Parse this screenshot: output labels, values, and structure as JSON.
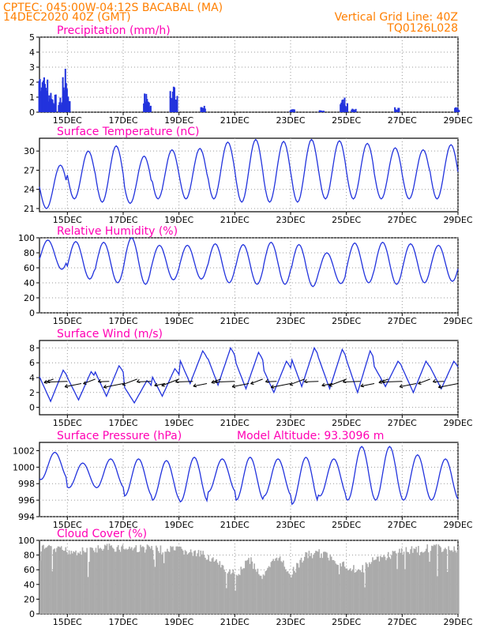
{
  "header": {
    "line1_left": "CPTEC:   045:00W-04:12S   BACABAL (MA)",
    "line2_left": "14DEC2020 40Z (GMT)",
    "line2_right": "Vertical Grid Line: 40Z",
    "line3_right": "TQ0126L028"
  },
  "colors": {
    "header": "#ff7f00",
    "title": "#ff00b4",
    "line": "#2233dd",
    "bar": "#2233dd",
    "cloud": "#aaaaaa",
    "grid": "#999999"
  },
  "x_tick_labels": [
    "15DEC",
    "17DEC",
    "19DEC",
    "21DEC",
    "23DEC",
    "25DEC",
    "27DEC",
    "29DEC"
  ],
  "chart_data": [
    {
      "type": "bar",
      "title": "Precipitation (mm/h)",
      "ylim": [
        0,
        5
      ],
      "yticks": [
        0,
        1,
        2,
        3,
        4,
        5
      ],
      "x_range": [
        "14DEC",
        "29DEC"
      ],
      "bursts": [
        {
          "day": 0.05,
          "peak": 3.0
        },
        {
          "day": 0.2,
          "peak": 2.5
        },
        {
          "day": 0.35,
          "peak": 1.6
        },
        {
          "day": 0.5,
          "peak": 1.2
        },
        {
          "day": 0.75,
          "peak": 1.0
        },
        {
          "day": 0.9,
          "peak": 2.9
        },
        {
          "day": 1.0,
          "peak": 1.2
        },
        {
          "day": 3.8,
          "peak": 1.3
        },
        {
          "day": 3.9,
          "peak": 0.8
        },
        {
          "day": 4.75,
          "peak": 2.1
        },
        {
          "day": 4.85,
          "peak": 1.2
        },
        {
          "day": 5.85,
          "peak": 0.5
        },
        {
          "day": 9.05,
          "peak": 0.2
        },
        {
          "day": 10.1,
          "peak": 0.15
        },
        {
          "day": 10.85,
          "peak": 1.0
        },
        {
          "day": 10.95,
          "peak": 0.6
        },
        {
          "day": 11.25,
          "peak": 0.25
        },
        {
          "day": 12.8,
          "peak": 0.35
        },
        {
          "day": 14.95,
          "peak": 0.35
        }
      ]
    },
    {
      "type": "line",
      "title": "Surface Temperature (nC)",
      "ylim": [
        20.5,
        32
      ],
      "yticks": [
        21,
        24,
        27,
        30
      ],
      "daily_max": [
        27.8,
        30.0,
        30.8,
        29.2,
        30.2,
        30.4,
        31.4,
        31.8,
        31.5,
        31.8,
        31.6,
        31.2,
        30.5,
        30.2,
        31.0
      ],
      "daily_min": [
        21.0,
        22.5,
        22.0,
        21.8,
        22.5,
        22.5,
        22.5,
        22.0,
        22.0,
        22.0,
        22.5,
        22.5,
        22.5,
        22.5,
        22.5
      ]
    },
    {
      "type": "line",
      "title": "Relative Humidity (%)",
      "ylim": [
        0,
        100
      ],
      "yticks": [
        0,
        20,
        40,
        60,
        80,
        100
      ],
      "daily_max": [
        97,
        95,
        94,
        100,
        90,
        90,
        92,
        91,
        94,
        91,
        80,
        93,
        94,
        92,
        90
      ],
      "daily_min": [
        58,
        45,
        40,
        38,
        44,
        45,
        40,
        38,
        38,
        35,
        39,
        40,
        38,
        40,
        42
      ]
    },
    {
      "type": "line",
      "title": "Surface Wind (m/s)",
      "ylim": [
        -1,
        9
      ],
      "yticks": [
        0,
        2,
        4,
        6,
        8
      ],
      "daily_max": [
        5.0,
        4.8,
        5.6,
        3.6,
        5.2,
        7.6,
        8.0,
        7.4,
        6.2,
        8.0,
        7.8,
        7.6,
        6.2,
        6.2,
        6.2
      ],
      "daily_min": [
        0.8,
        1.0,
        1.5,
        0.6,
        1.5,
        3.2,
        3.0,
        2.5,
        2.0,
        2.8,
        2.5,
        2.0,
        2.8,
        2.0,
        2.5
      ]
    },
    {
      "type": "line",
      "title": "Surface Pressure (hPa)",
      "annotation": "Model Altitude: 93.3096 m",
      "ylim": [
        994,
        1003
      ],
      "yticks": [
        994,
        996,
        998,
        1000,
        1002
      ],
      "daily_max": [
        1001.8,
        1000.5,
        1001.0,
        1001.0,
        1000.8,
        1001.2,
        1001.0,
        1001.2,
        1001.0,
        1001.2,
        1001.0,
        1002.5,
        1002.5,
        1001.5,
        1001.0
      ],
      "daily_min": [
        998.5,
        997.5,
        997.5,
        996.5,
        996.0,
        995.8,
        997.0,
        996.0,
        996.5,
        995.5,
        996.5,
        996.0,
        996.0,
        996.0,
        996.0
      ]
    },
    {
      "type": "bar",
      "title": "Cloud Cover (%)",
      "ylim": [
        0,
        100
      ],
      "yticks": [
        0,
        20,
        40,
        60,
        80,
        100
      ],
      "segment_days": [
        0,
        0.5,
        1,
        1.5,
        2,
        2.5,
        3,
        3.5,
        4,
        4.5,
        5,
        5.5,
        6,
        6.5,
        7,
        7.5,
        8,
        8.5,
        9,
        9.5,
        10,
        10.5,
        11,
        11.5,
        12,
        12.5,
        13,
        13.5,
        14,
        14.5,
        15
      ],
      "segment_levels": [
        95,
        93,
        92,
        91,
        94,
        96,
        96,
        95,
        95,
        92,
        93,
        88,
        85,
        70,
        60,
        80,
        55,
        85,
        60,
        85,
        88,
        82,
        70,
        65,
        80,
        85,
        92,
        94,
        95,
        95,
        95
      ]
    }
  ]
}
